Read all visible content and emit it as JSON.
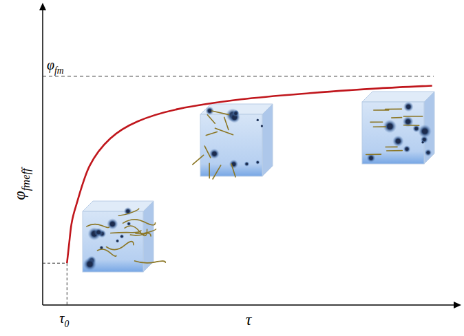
{
  "chart_data": {
    "type": "line",
    "x_label": "τ",
    "y_label": "φfmeff",
    "xlim": [
      0,
      100
    ],
    "ylim": [
      0,
      100
    ],
    "xticks": [],
    "yticks": [],
    "tick_labels": false,
    "grid": false,
    "x": [
      5.9,
      6.4,
      7.0,
      8.0,
      11.4,
      16.4,
      23.1,
      33.1,
      48.2,
      64.9,
      81.6,
      94.6
    ],
    "series": [
      {
        "color": "#c0161c",
        "line_style": "solid",
        "values": [
          14.1,
          20.3,
          27.3,
          33.0,
          46.9,
          56.1,
          61.9,
          66.1,
          69.3,
          71.4,
          73.0,
          73.9
        ]
      }
    ],
    "annotations": [
      {
        "text": "φfm",
        "y": 77.1
      },
      {
        "text": "τ0",
        "x": 5.9,
        "y": 14.1
      }
    ]
  }
}
